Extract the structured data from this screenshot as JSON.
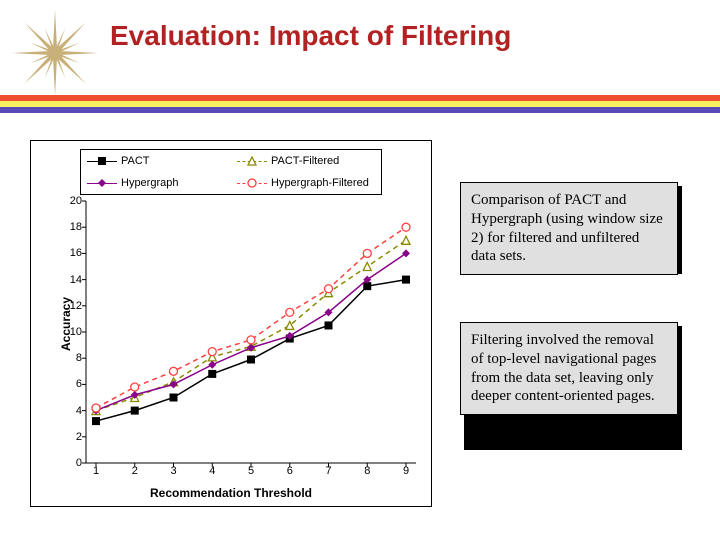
{
  "title": "Evaluation: Impact of Filtering",
  "title_color": "#b22222",
  "logo_color": "#c8b078",
  "divider_colors": [
    "#f05030",
    "#f8f060",
    "#5848b8"
  ],
  "chart": {
    "type": "line",
    "x_label": "Recommendation Threshold",
    "y_label": "Accuracy",
    "x_categories": [
      "1",
      "2",
      "3",
      "4",
      "5",
      "6",
      "7",
      "8",
      "9"
    ],
    "y_ticks": [
      "0",
      "2",
      "4",
      "6",
      "8",
      "10",
      "12",
      "14",
      "16",
      "18",
      "20"
    ],
    "ylim": [
      0,
      20
    ],
    "background_color": "#ffffff",
    "border_color": "#000000",
    "axis_fontsize": 11,
    "label_fontsize": 12,
    "series": [
      {
        "name": "PACT",
        "color": "#000000",
        "dash": "solid",
        "marker": "square-filled",
        "values": [
          3.2,
          4.0,
          5.0,
          6.8,
          7.9,
          9.5,
          10.5,
          13.5,
          14.0
        ]
      },
      {
        "name": "PACT-Filtered",
        "color": "#8a8a00",
        "dash": "dashed",
        "marker": "triangle-open",
        "values": [
          4.0,
          5.0,
          6.2,
          8.1,
          8.9,
          10.5,
          13.0,
          15.0,
          17.0
        ]
      },
      {
        "name": "Hypergraph",
        "color": "#8a008a",
        "dash": "solid",
        "marker": "diamond-filled",
        "values": [
          4.0,
          5.2,
          6.0,
          7.5,
          8.8,
          9.7,
          11.5,
          14.0,
          16.0
        ]
      },
      {
        "name": "Hypergraph-Filtered",
        "color": "#ff4040",
        "dash": "dashed",
        "marker": "circle-open",
        "values": [
          4.2,
          5.8,
          7.0,
          8.5,
          9.4,
          11.5,
          13.3,
          16.0,
          18.0
        ]
      }
    ]
  },
  "callouts": [
    {
      "text": "Comparison of PACT and Hypergraph (using window size 2) for filtered and unfiltered data sets."
    },
    {
      "text": "Filtering involved the removal of top-level navigational pages from the data set, leaving only deeper content-oriented pages."
    }
  ],
  "callout_bg": "#e0e0e0",
  "callout_border": "#000000"
}
